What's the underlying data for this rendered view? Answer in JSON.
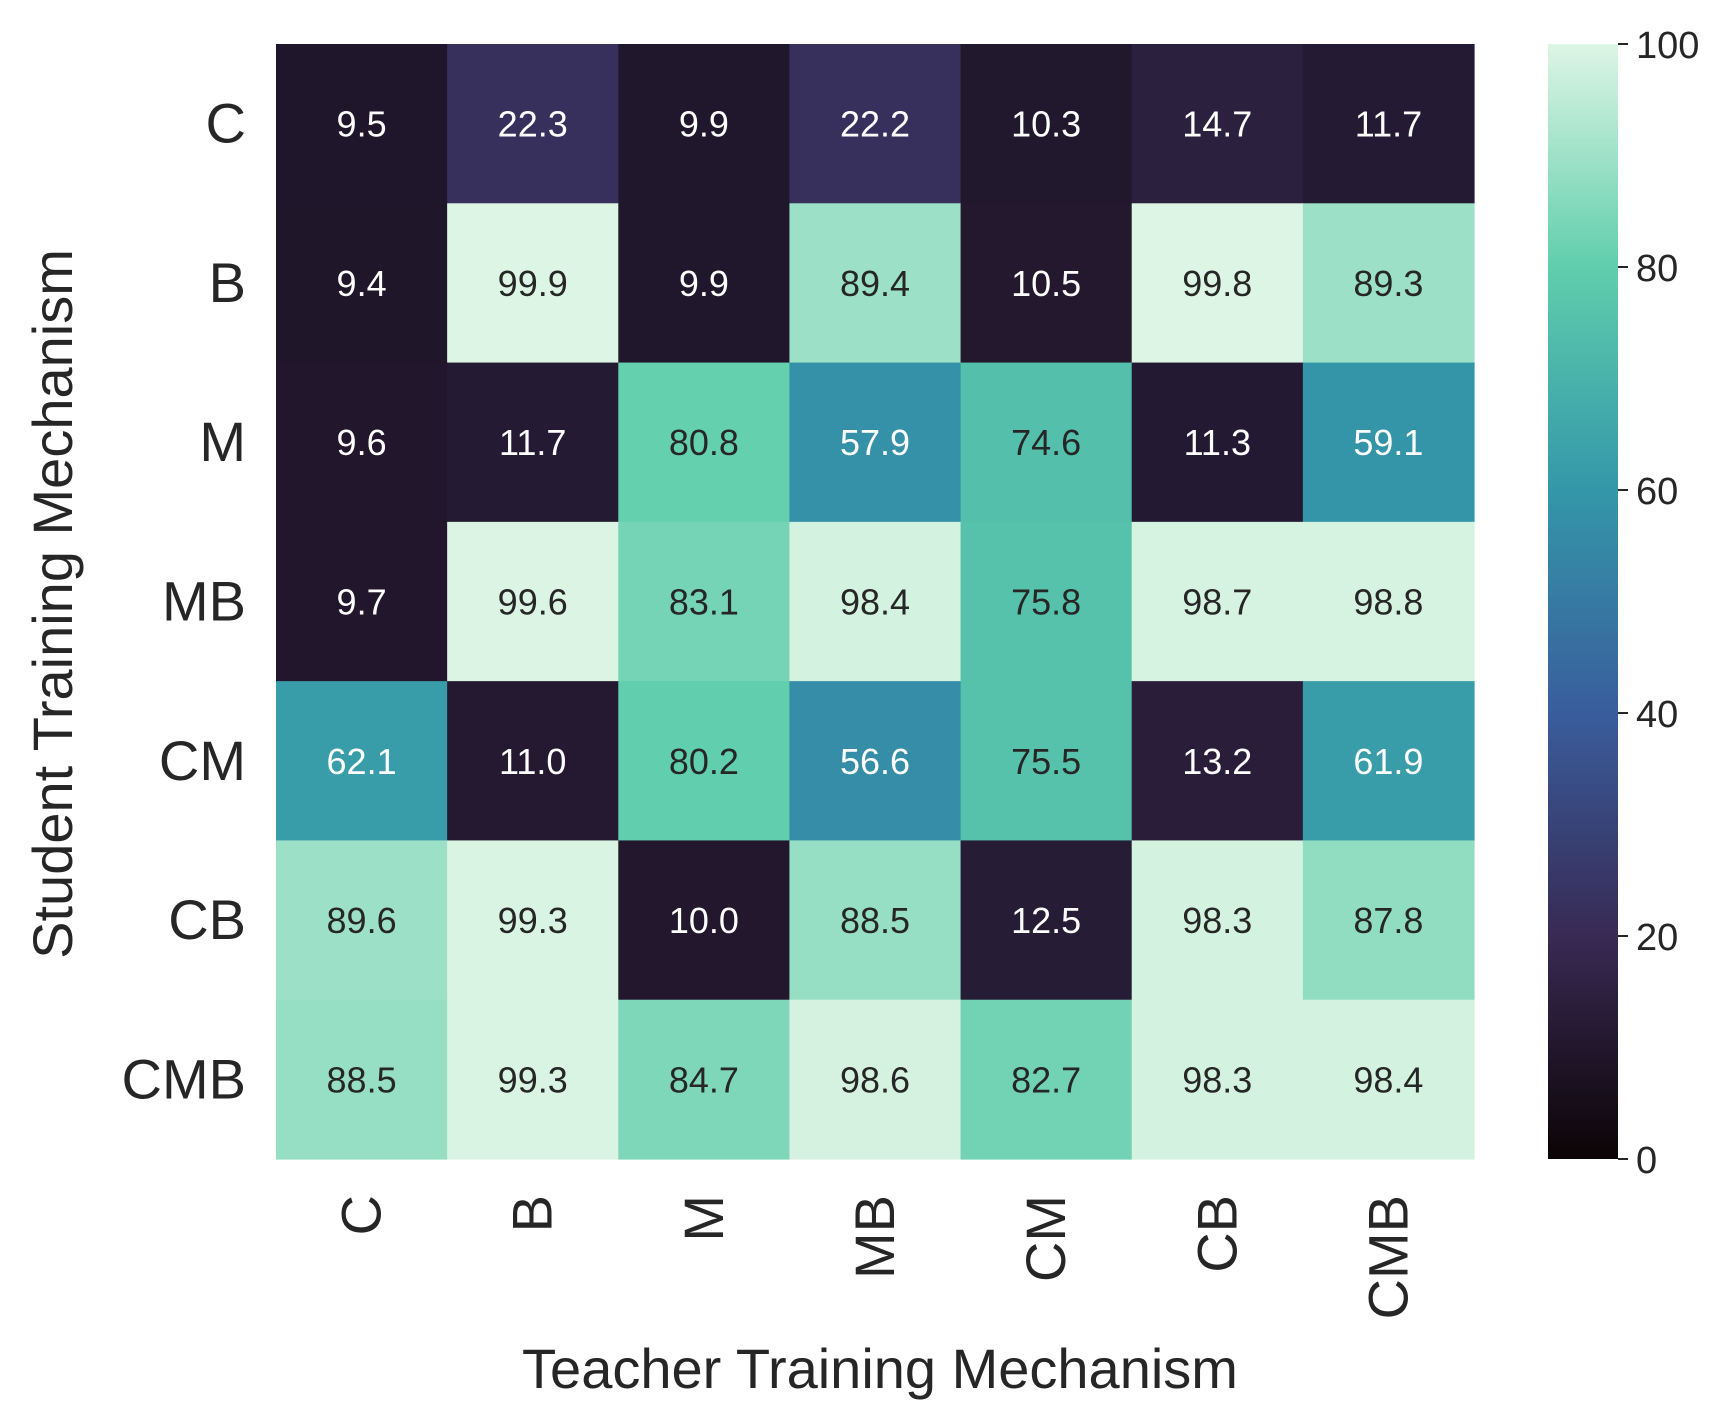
{
  "chart_data": {
    "type": "heatmap",
    "title": "",
    "xlabel": "Teacher Training Mechanism",
    "ylabel": "Student Training Mechanism",
    "x_categories": [
      "C",
      "B",
      "M",
      "MB",
      "CM",
      "CB",
      "CMB"
    ],
    "y_categories": [
      "C",
      "B",
      "M",
      "MB",
      "CM",
      "CB",
      "CMB"
    ],
    "values": [
      [
        9.5,
        22.3,
        9.9,
        22.2,
        10.3,
        14.7,
        11.7
      ],
      [
        9.4,
        99.9,
        9.9,
        89.4,
        10.5,
        99.8,
        89.3
      ],
      [
        9.6,
        11.7,
        80.8,
        57.9,
        74.6,
        11.3,
        59.1
      ],
      [
        9.7,
        99.6,
        83.1,
        98.4,
        75.8,
        98.7,
        98.8
      ],
      [
        62.1,
        11.0,
        80.2,
        56.6,
        75.5,
        13.2,
        61.9
      ],
      [
        89.6,
        99.3,
        10.0,
        88.5,
        12.5,
        98.3,
        87.8
      ],
      [
        88.5,
        99.3,
        84.7,
        98.6,
        82.7,
        98.3,
        98.4
      ]
    ],
    "colorbar": {
      "min": 0,
      "max": 100,
      "ticks": [
        0,
        20,
        40,
        60,
        80,
        100
      ],
      "colormap": "mako",
      "stops": [
        "#0b0405",
        "#382a54",
        "#395d9c",
        "#3497a9",
        "#60ceac",
        "#def5e5"
      ]
    },
    "annotation_colors": {
      "dark_text": "#262626",
      "light_text": "#ffffff"
    },
    "grid": false,
    "legend": "colorbar-right"
  }
}
